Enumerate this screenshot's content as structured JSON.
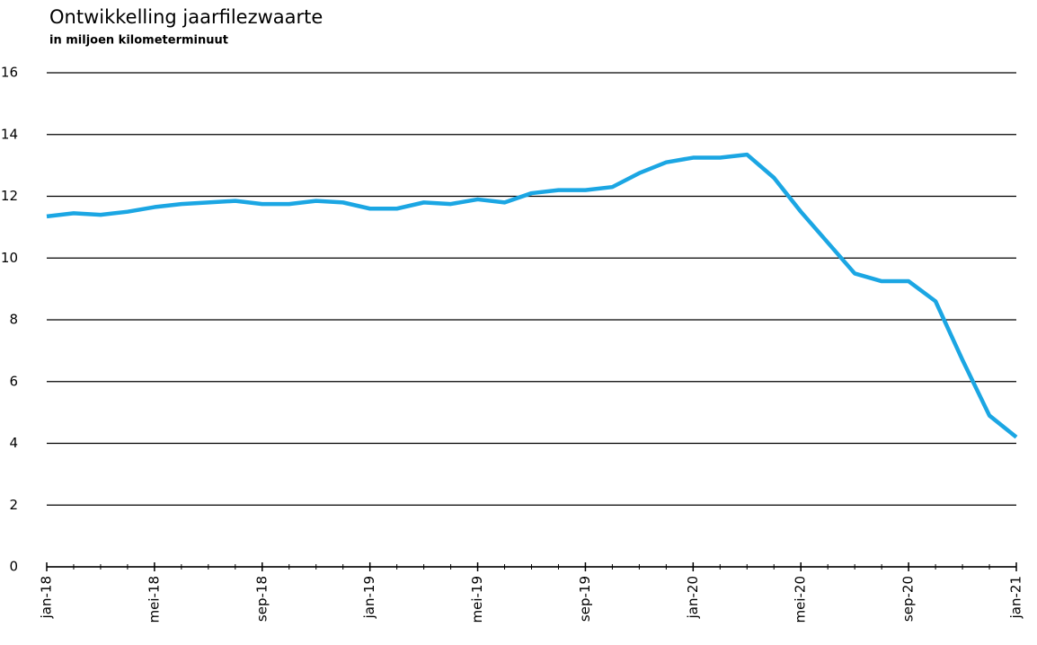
{
  "chart_data": {
    "type": "line",
    "title": "Ontwikkelling jaarfilezwaarte",
    "subtitle": "in miljoen kilometerminuut",
    "categories": [
      "jan-18",
      null,
      null,
      null,
      "mei-18",
      null,
      null,
      null,
      "sep-18",
      null,
      null,
      null,
      "jan-19",
      null,
      null,
      null,
      "mei-19",
      null,
      null,
      null,
      "sep-19",
      null,
      null,
      null,
      "jan-20",
      null,
      null,
      null,
      "mei-20",
      null,
      null,
      null,
      "sep-20",
      null,
      null,
      null,
      "jan-21"
    ],
    "series": [
      {
        "name": "jaarfilezwaarte",
        "color": "#1ba6e3",
        "values": [
          11.35,
          11.45,
          11.4,
          11.5,
          11.65,
          11.75,
          11.8,
          11.85,
          11.75,
          11.75,
          11.85,
          11.8,
          11.6,
          11.6,
          11.8,
          11.75,
          11.9,
          11.8,
          12.1,
          12.2,
          12.2,
          12.3,
          12.75,
          13.1,
          13.25,
          13.25,
          13.35,
          12.6,
          11.5,
          10.5,
          9.5,
          9.25,
          9.25,
          8.6,
          6.7,
          4.9,
          4.2
        ]
      }
    ],
    "ylim": [
      0,
      16
    ],
    "yticks": [
      0,
      2,
      4,
      6,
      8,
      10,
      12,
      14,
      16
    ],
    "grid": true
  }
}
